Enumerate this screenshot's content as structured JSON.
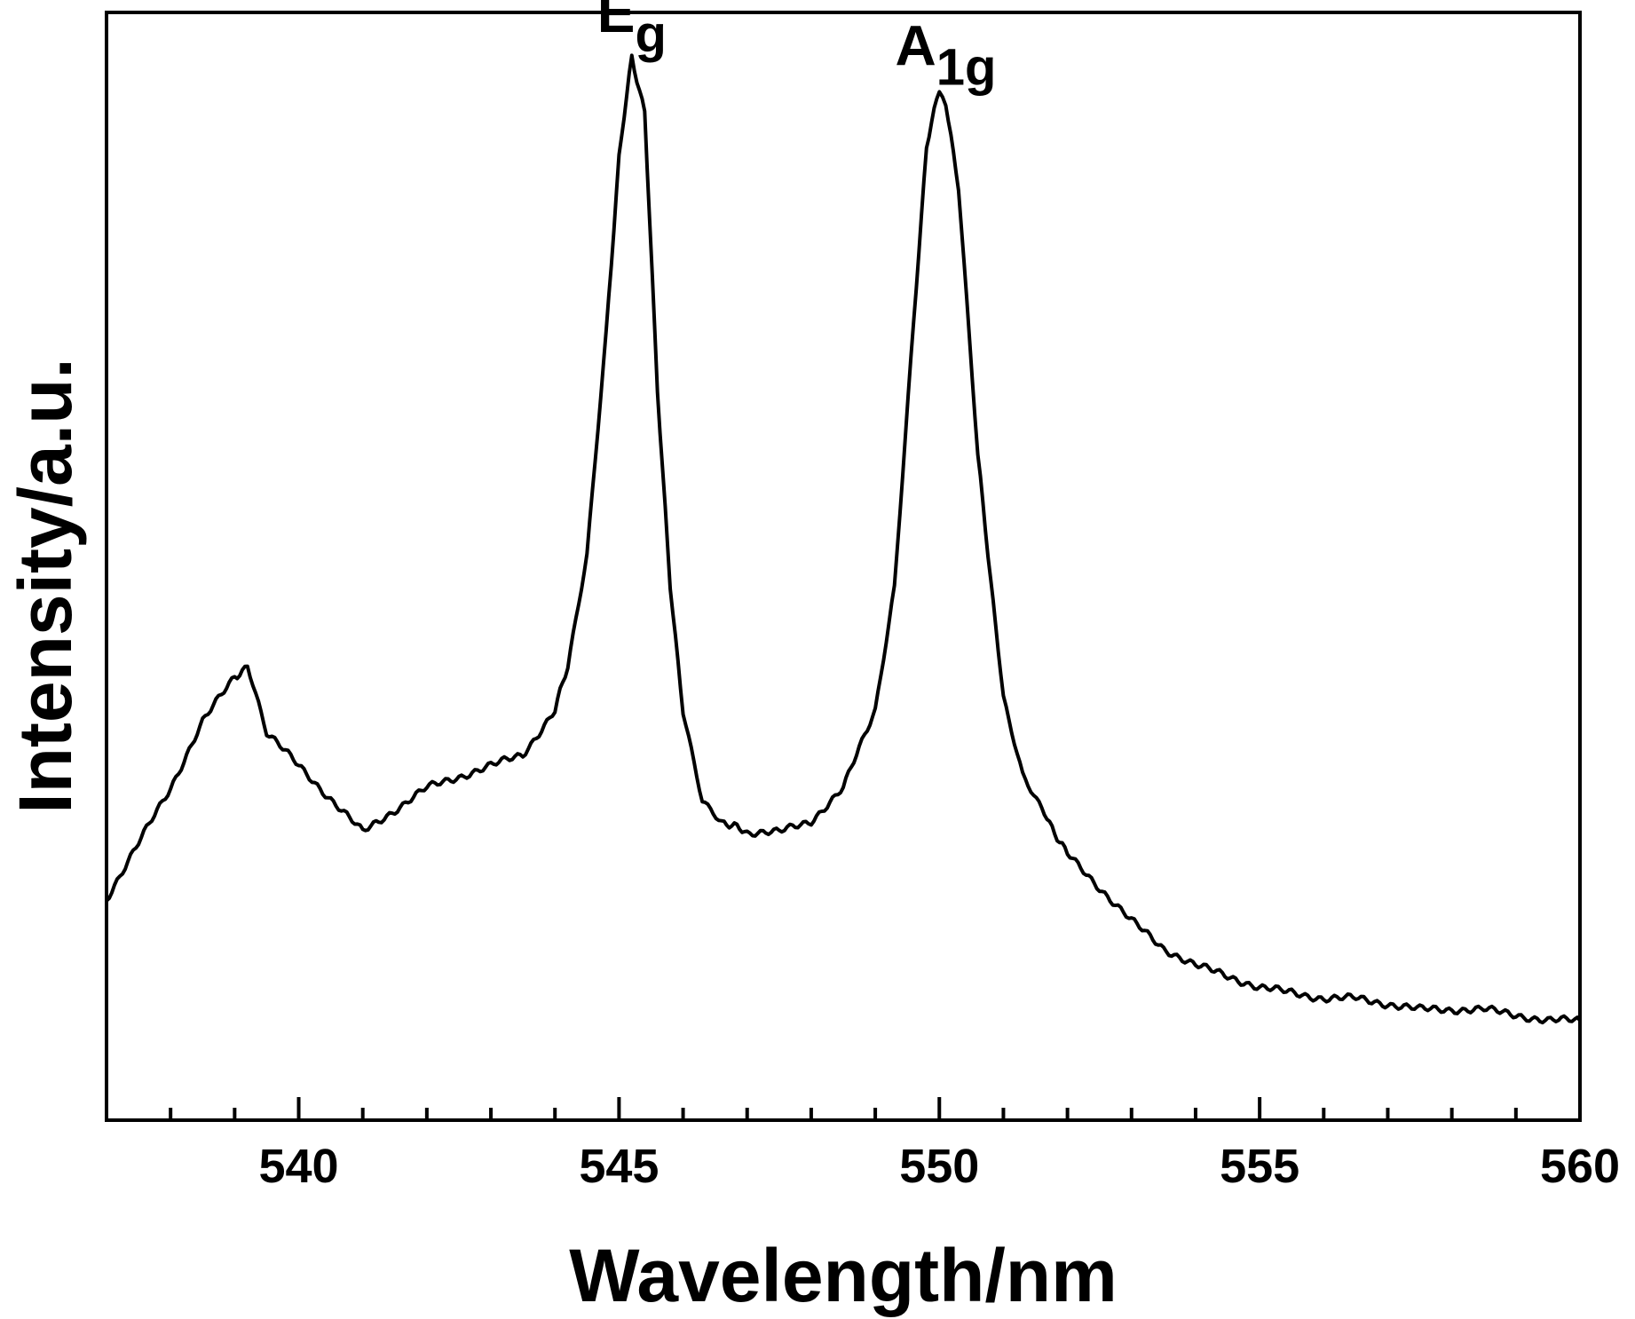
{
  "chart_data": {
    "type": "line",
    "title": "",
    "xlabel": "Wavelength/nm",
    "ylabel": "Intensity/a.u.",
    "xlim": [
      537,
      560
    ],
    "ylim": [
      0,
      1
    ],
    "x_ticks": [
      540,
      545,
      550,
      555,
      560
    ],
    "x_tick_labels": [
      "540",
      "545",
      "550",
      "555",
      "560"
    ],
    "x_minor_step": 1.0,
    "y_ticks_labeled": false,
    "grid": false,
    "legend": "none",
    "line_color": "#000000",
    "annotations": [
      {
        "main": "E",
        "sub": "g",
        "x": 545.2,
        "y": 0.96
      },
      {
        "main": "A",
        "sub": "1g",
        "x": 550.1,
        "y": 0.93
      }
    ],
    "series": [
      {
        "x": [
          537.0,
          537.5,
          538.0,
          538.5,
          539.0,
          539.2,
          539.5,
          540.0,
          540.5,
          541.0,
          541.5,
          542.0,
          542.5,
          543.0,
          543.5,
          544.0,
          544.2,
          544.5,
          544.8,
          545.0,
          545.2,
          545.4,
          545.6,
          545.8,
          546.0,
          546.3,
          546.6,
          547.0,
          547.5,
          548.0,
          548.5,
          549.0,
          549.3,
          549.6,
          549.8,
          550.0,
          550.1,
          550.3,
          550.6,
          551.0,
          551.3,
          551.6,
          552.0,
          552.5,
          553.0,
          553.5,
          554.0,
          554.5,
          555.0,
          555.5,
          556.0,
          556.5,
          557.0,
          557.5,
          558.0,
          558.5,
          559.0,
          559.5,
          560.0
        ],
        "y": [
          0.2,
          0.25,
          0.3,
          0.36,
          0.4,
          0.41,
          0.35,
          0.32,
          0.29,
          0.26,
          0.28,
          0.3,
          0.31,
          0.32,
          0.33,
          0.37,
          0.41,
          0.51,
          0.71,
          0.87,
          0.96,
          0.91,
          0.66,
          0.48,
          0.37,
          0.29,
          0.27,
          0.26,
          0.26,
          0.27,
          0.3,
          0.37,
          0.48,
          0.72,
          0.88,
          0.93,
          0.92,
          0.84,
          0.6,
          0.38,
          0.31,
          0.28,
          0.24,
          0.21,
          0.18,
          0.155,
          0.14,
          0.13,
          0.12,
          0.115,
          0.11,
          0.11,
          0.105,
          0.1,
          0.1,
          0.1,
          0.095,
          0.09,
          0.09
        ]
      }
    ]
  }
}
